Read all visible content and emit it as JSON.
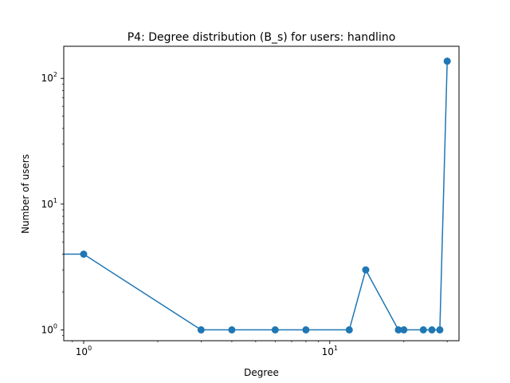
{
  "chart_data": {
    "type": "line",
    "title": "P4: Degree distribution (B_s) for users: handlino",
    "xlabel": "Degree",
    "ylabel": "Number of users",
    "xscale": "log",
    "yscale": "log",
    "xlim": [
      0.83,
      33.5
    ],
    "ylim": [
      0.82,
      180
    ],
    "grid": false,
    "legend": "none",
    "x_ticks": [
      {
        "value": 1,
        "base": "10",
        "exp": "0"
      },
      {
        "value": 10,
        "base": "10",
        "exp": "1"
      }
    ],
    "y_ticks": [
      {
        "value": 1,
        "base": "10",
        "exp": "0"
      },
      {
        "value": 10,
        "base": "10",
        "exp": "1"
      },
      {
        "value": 100,
        "base": "10",
        "exp": "2"
      }
    ],
    "series": [
      {
        "color": "#1f77b4",
        "marker": "circle",
        "x": [
          0,
          1,
          3,
          4,
          6,
          8,
          12,
          14,
          19,
          20,
          24,
          26,
          28,
          30
        ],
        "y": [
          4,
          4,
          1,
          1,
          1,
          1,
          1,
          3,
          1,
          1,
          1,
          1,
          1,
          137
        ]
      }
    ]
  }
}
